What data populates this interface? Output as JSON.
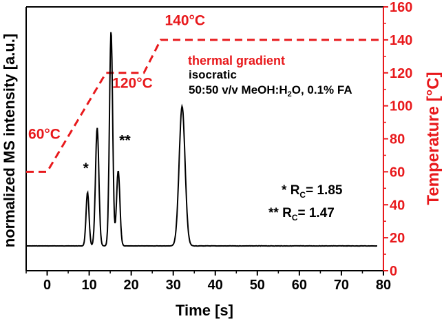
{
  "chart_data": {
    "type": "line",
    "xlabel": "Time [s]",
    "ylabel_left": "normalized MS intensity [a.u.]",
    "ylabel_right": "Temperature [°C]",
    "xlim": [
      -5,
      80
    ],
    "ylim_right": [
      0,
      160
    ],
    "x_ticks": [
      0,
      10,
      20,
      30,
      40,
      50,
      60,
      70,
      80
    ],
    "y_right_ticks": [
      0,
      20,
      40,
      60,
      80,
      100,
      120,
      140,
      160
    ],
    "grid": false,
    "colors": {
      "signal": "#000000",
      "temperature": "#e8191c",
      "right_axis": "#e8191c"
    },
    "series": [
      {
        "name": "MS intensity",
        "axis": "left",
        "peaks": [
          {
            "center": 9.6,
            "height": 0.25,
            "width": 0.35
          },
          {
            "center": 11.9,
            "height": 0.55,
            "width": 0.4
          },
          {
            "center": 15.2,
            "height": 1.0,
            "width": 0.38
          },
          {
            "center": 16.9,
            "height": 0.35,
            "width": 0.4
          },
          {
            "center": 32.1,
            "height": 0.65,
            "width": 0.7
          }
        ],
        "baseline": 0.0
      },
      {
        "name": "temperature",
        "axis": "right",
        "style": "dashed",
        "x": [
          -5,
          0,
          14,
          23,
          27,
          80
        ],
        "y": [
          60,
          60,
          120,
          120,
          140,
          140
        ]
      }
    ],
    "temperature_labels": [
      {
        "text": "60°C",
        "x": -4.5,
        "y": 80
      },
      {
        "text": "120°C",
        "x": 15.5,
        "y": 111
      },
      {
        "text": "140°C",
        "x": 28,
        "y": 149
      }
    ],
    "peak_labels": [
      {
        "text": "*",
        "x": 9.2,
        "y": 0.32
      },
      {
        "text": "**",
        "x": 18.5,
        "y": 0.45
      }
    ],
    "legend": {
      "thermal": "thermal gradient",
      "isocratic": "isocratic",
      "conditions_prefix": "50:50 v/v MeOH:H",
      "conditions_sub": "2",
      "conditions_suffix": "O, 0.1% FA"
    },
    "resolutions": [
      {
        "stars": "*",
        "label": "R",
        "sub": "C",
        "value": "= 1.85"
      },
      {
        "stars": "**",
        "label": "R",
        "sub": "C",
        "value": "= 1.47"
      }
    ]
  }
}
